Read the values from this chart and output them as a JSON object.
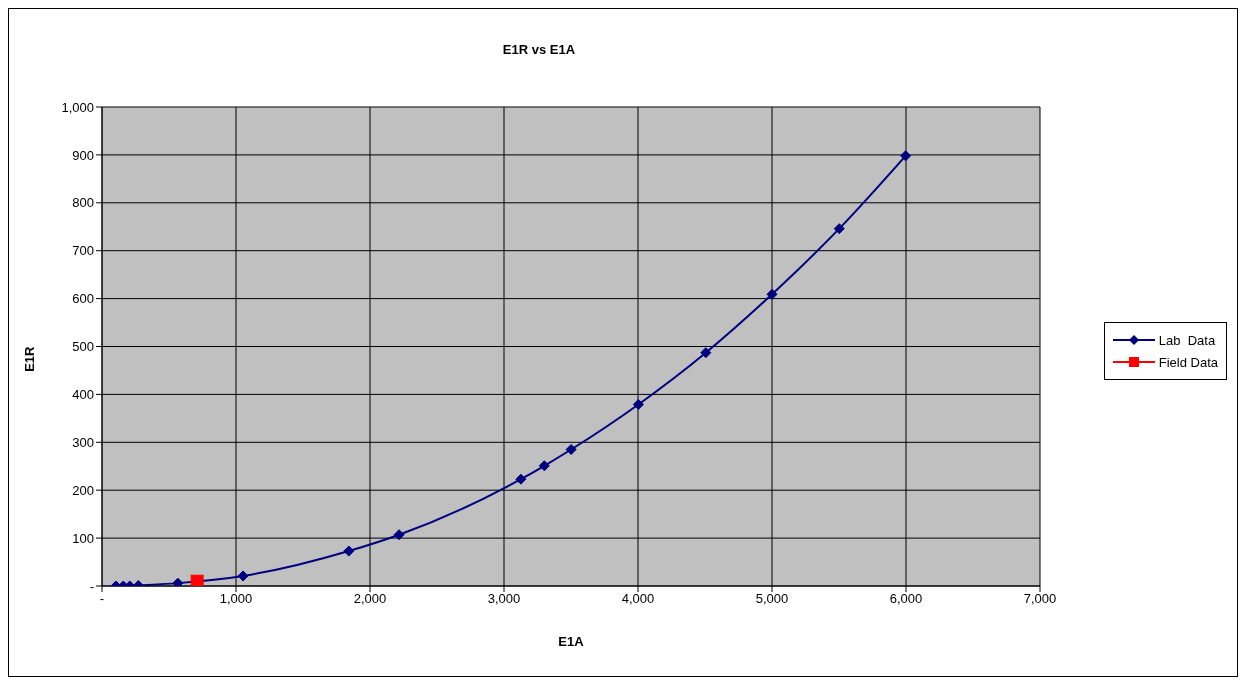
{
  "chart_data": {
    "type": "line",
    "title": "E1R vs E1A",
    "xlabel": "E1A",
    "ylabel": "E1R",
    "xlim": [
      0,
      7000
    ],
    "xticks": [
      {
        "value": 0,
        "label": "-"
      },
      {
        "value": 1000,
        "label": "1,000"
      },
      {
        "value": 2000,
        "label": "2,000"
      },
      {
        "value": 3000,
        "label": "3,000"
      },
      {
        "value": 4000,
        "label": "4,000"
      },
      {
        "value": 5000,
        "label": "5,000"
      },
      {
        "value": 6000,
        "label": "6,000"
      },
      {
        "value": 7000,
        "label": "7,000"
      }
    ],
    "ylim": [
      0,
      1000
    ],
    "yticks": [
      {
        "value": 0,
        "label": "-"
      },
      {
        "value": 100,
        "label": "100"
      },
      {
        "value": 200,
        "label": "200"
      },
      {
        "value": 300,
        "label": "300"
      },
      {
        "value": 400,
        "label": "400"
      },
      {
        "value": 500,
        "label": "500"
      },
      {
        "value": 600,
        "label": "600"
      },
      {
        "value": 700,
        "label": "700"
      },
      {
        "value": 800,
        "label": "800"
      },
      {
        "value": 900,
        "label": "900"
      },
      {
        "value": 1000,
        "label": "1,000"
      }
    ],
    "grid": true,
    "legend": "right",
    "line_style": "solid",
    "series": [
      {
        "name": "Lab  Data",
        "color": "#000080",
        "marker": "diamond",
        "x": [
          104,
          159,
          207,
          271,
          566,
          1053,
          1842,
          2217,
          3126,
          3301,
          3501,
          4003,
          4506,
          5000,
          5502,
          5997
        ],
        "values": [
          0,
          0,
          0,
          1,
          6,
          21,
          73,
          107,
          223,
          251,
          285,
          379,
          487,
          609,
          746,
          898
        ]
      },
      {
        "name": "Field Data",
        "color": "#ff0000",
        "marker": "square",
        "x": [
          710
        ],
        "values": [
          10
        ]
      }
    ]
  }
}
